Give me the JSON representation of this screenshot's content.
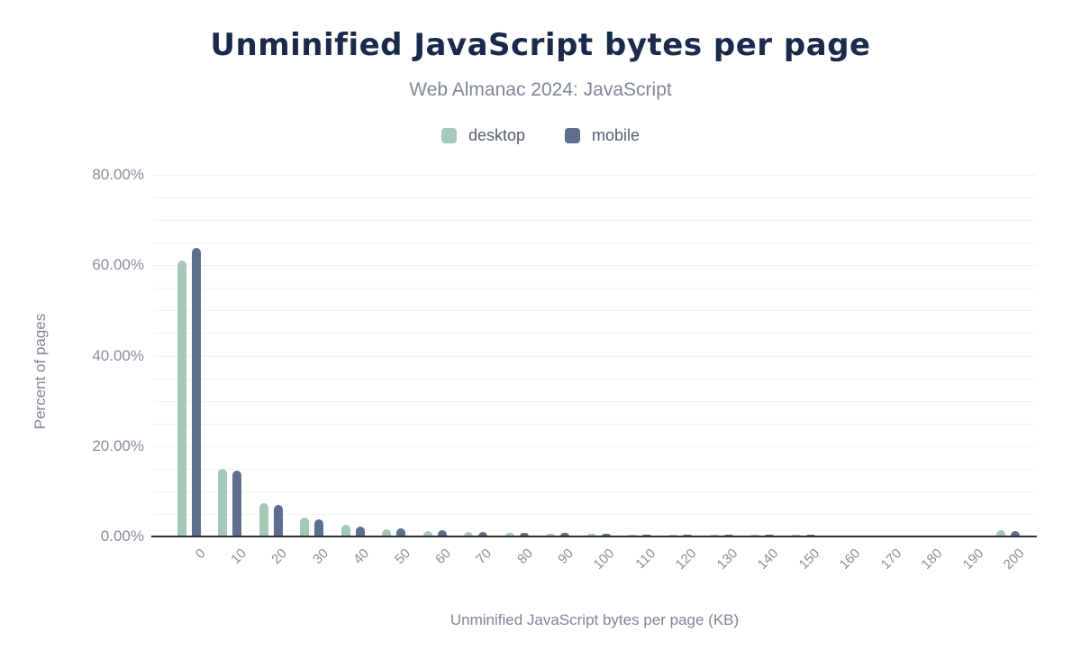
{
  "chart_data": {
    "type": "bar",
    "title": "Unminified JavaScript bytes per page",
    "subtitle": "Web Almanac 2024: JavaScript",
    "xlabel": "Unminified JavaScript bytes per page (KB)",
    "ylabel": "Percent of pages",
    "categories": [
      "0",
      "10",
      "20",
      "30",
      "40",
      "50",
      "60",
      "70",
      "80",
      "90",
      "100",
      "110",
      "120",
      "130",
      "140",
      "150",
      "160",
      "170",
      "180",
      "190",
      "200"
    ],
    "series": [
      {
        "name": "desktop",
        "color": "#a6c9b7",
        "values": [
          61.0,
          14.9,
          7.4,
          4.2,
          2.5,
          1.6,
          1.2,
          0.9,
          0.7,
          0.6,
          0.5,
          0.4,
          0.35,
          0.3,
          0.3,
          0.3,
          0.25,
          0.25,
          0.2,
          0.2,
          1.4
        ]
      },
      {
        "name": "mobile",
        "color": "#5e6f8e",
        "values": [
          63.9,
          14.5,
          6.9,
          3.7,
          2.1,
          1.8,
          1.3,
          1.0,
          0.8,
          0.7,
          0.6,
          0.4,
          0.35,
          0.3,
          0.3,
          0.3,
          0.25,
          0.25,
          0.2,
          0.25,
          1.1
        ]
      }
    ],
    "ylim": [
      0,
      80
    ],
    "yticks": [
      0,
      20,
      40,
      60,
      80
    ],
    "ytick_labels": [
      "0.00%",
      "20.00%",
      "40.00%",
      "60.00%",
      "80.00%"
    ],
    "grid_step": 5,
    "grid_on": true,
    "legend_position": "top",
    "colors": {
      "title": "#1b2a4b",
      "subtitle": "#7e8798",
      "tick_label": "#868e9b",
      "axis_title": "#7d8695",
      "axis_line": "#2e3033",
      "gridline": "#f0f2f4",
      "background": "#ffffff"
    }
  }
}
